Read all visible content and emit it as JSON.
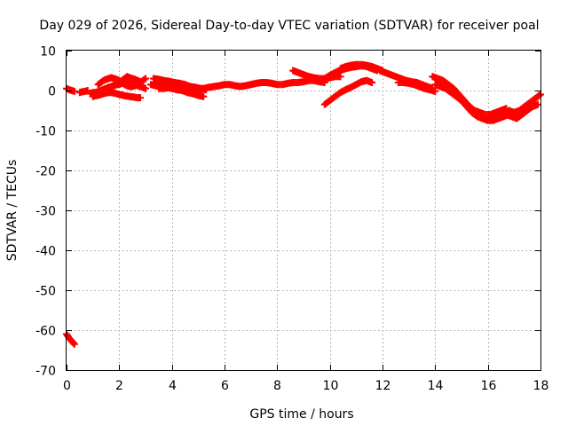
{
  "chart_data": {
    "type": "scatter",
    "title": "Day 029 of 2026, Sidereal Day-to-day VTEC variation (SDTVAR) for receiver poal",
    "xlabel": "GPS time / hours",
    "ylabel": "SDTVAR / TECUs",
    "xlim": [
      0,
      18
    ],
    "ylim": [
      -70,
      10
    ],
    "xticks": [
      0,
      2,
      4,
      6,
      8,
      10,
      12,
      14,
      16,
      18
    ],
    "yticks": [
      10,
      0,
      -10,
      -20,
      -30,
      -40,
      -50,
      -60,
      -70
    ],
    "grid": true,
    "legend": "none",
    "marker": "plus",
    "color": "#ff0000",
    "series": [
      {
        "name": "s1",
        "x": [
          0.0,
          0.1,
          0.2,
          0.3
        ],
        "y": [
          0.5,
          0.2,
          0.0,
          -0.2
        ]
      },
      {
        "name": "s2",
        "x": [
          0.5,
          0.6,
          0.7,
          0.8
        ],
        "y": [
          -0.5,
          -0.3,
          -0.2,
          0.0
        ]
      },
      {
        "name": "s3",
        "x": [
          0.9,
          1.0,
          1.1,
          1.2,
          1.3,
          1.4,
          1.5,
          1.6,
          1.7,
          1.8,
          1.9,
          2.0,
          2.1,
          2.2,
          2.3,
          2.4,
          2.5,
          2.6,
          2.7,
          2.8
        ],
        "y": [
          -0.8,
          -0.5,
          -0.5,
          -0.3,
          0.0,
          0.3,
          0.5,
          0.8,
          1.0,
          1.3,
          1.5,
          2.0,
          2.5,
          3.0,
          3.5,
          3.2,
          3.0,
          2.8,
          2.5,
          2.2
        ]
      },
      {
        "name": "s4",
        "x": [
          1.0,
          1.1,
          1.2,
          1.3,
          1.4,
          1.5,
          1.6,
          1.7,
          1.8,
          1.9,
          2.0,
          2.1,
          2.2,
          2.3,
          2.4,
          2.5,
          2.6,
          2.7,
          2.8
        ],
        "y": [
          -1.5,
          -1.3,
          -1.2,
          -1.0,
          -0.8,
          -0.6,
          -0.5,
          -0.5,
          -0.6,
          -0.8,
          -1.0,
          -1.1,
          -1.3,
          -1.4,
          -1.5,
          -1.6,
          -1.7,
          -1.8,
          -1.8
        ]
      },
      {
        "name": "s5",
        "x": [
          1.2,
          1.3,
          1.4,
          1.5,
          1.6,
          1.7,
          1.8,
          1.9,
          2.0,
          2.1,
          2.2,
          2.3,
          2.4,
          2.5,
          2.6,
          2.7,
          2.8,
          2.9,
          3.0
        ],
        "y": [
          1.5,
          2.0,
          2.5,
          2.8,
          3.0,
          3.2,
          3.0,
          2.8,
          2.5,
          2.0,
          1.5,
          1.2,
          1.0,
          1.0,
          1.2,
          1.5,
          2.0,
          2.5,
          3.0
        ]
      },
      {
        "name": "s6",
        "x": [
          1.3,
          1.4,
          1.5,
          1.6,
          1.7,
          1.8,
          1.9,
          2.0,
          2.1,
          2.2,
          2.3,
          2.4,
          2.5,
          2.6,
          2.7,
          2.8,
          2.9,
          3.0
        ],
        "y": [
          0.0,
          0.2,
          0.5,
          0.8,
          1.0,
          1.2,
          1.5,
          1.5,
          1.8,
          2.0,
          2.0,
          2.0,
          1.8,
          1.5,
          1.2,
          1.0,
          0.8,
          0.5
        ]
      },
      {
        "name": "s7",
        "x": [
          3.3,
          3.5,
          3.7,
          3.9,
          4.1,
          4.3,
          4.5,
          4.7,
          4.9,
          5.1,
          5.3
        ],
        "y": [
          3.0,
          2.8,
          2.5,
          2.3,
          2.0,
          1.8,
          1.5,
          1.0,
          0.8,
          0.5,
          0.2
        ]
      },
      {
        "name": "s8",
        "x": [
          3.2,
          3.4,
          3.6,
          3.8,
          4.0,
          4.2,
          4.4,
          4.6,
          4.8,
          5.0,
          5.2
        ],
        "y": [
          1.5,
          1.2,
          1.0,
          0.8,
          0.5,
          0.2,
          0.0,
          -0.5,
          -0.8,
          -1.2,
          -1.5
        ]
      },
      {
        "name": "s9",
        "x": [
          3.5,
          3.7,
          3.9,
          4.1,
          4.3,
          4.5,
          4.7,
          4.9,
          5.1
        ],
        "y": [
          0.5,
          0.5,
          0.8,
          1.0,
          1.2,
          1.0,
          0.8,
          0.5,
          0.0
        ]
      },
      {
        "name": "s10",
        "x": [
          4.8,
          5.0,
          5.2,
          5.4,
          5.6,
          5.8,
          6.0,
          6.2,
          6.4,
          6.6,
          6.8,
          7.0,
          7.2,
          7.4,
          7.6,
          7.8,
          8.0,
          8.2,
          8.4,
          8.6,
          8.8,
          9.0,
          9.2,
          9.4,
          9.6,
          9.8
        ],
        "y": [
          0.5,
          0.5,
          0.5,
          0.8,
          1.0,
          1.2,
          1.5,
          1.5,
          1.2,
          1.0,
          1.2,
          1.5,
          1.8,
          2.0,
          2.0,
          1.8,
          1.5,
          1.5,
          1.8,
          2.0,
          2.0,
          2.2,
          2.5,
          2.5,
          2.2,
          2.0
        ]
      },
      {
        "name": "s11",
        "x": [
          8.6,
          8.8,
          9.0,
          9.2,
          9.4,
          9.6,
          9.8,
          10.0,
          10.2,
          10.4
        ],
        "y": [
          5.0,
          4.5,
          4.0,
          3.5,
          3.2,
          3.0,
          3.0,
          3.2,
          3.5,
          3.5
        ]
      },
      {
        "name": "s12",
        "x": [
          9.6,
          9.8,
          10.0,
          10.2,
          10.4,
          10.6,
          10.8,
          11.0,
          11.2,
          11.4,
          11.6,
          11.8
        ],
        "y": [
          2.5,
          3.0,
          3.8,
          4.5,
          5.0,
          5.5,
          5.8,
          6.0,
          6.2,
          6.0,
          5.5,
          5.0
        ]
      },
      {
        "name": "s13",
        "x": [
          9.8,
          10.0,
          10.2,
          10.4,
          10.6,
          10.8,
          11.0,
          11.2,
          11.4,
          11.6
        ],
        "y": [
          -3.5,
          -2.5,
          -1.5,
          -0.5,
          0.2,
          0.8,
          1.5,
          2.2,
          2.5,
          2.0
        ]
      },
      {
        "name": "s14",
        "x": [
          10.4,
          10.6,
          10.8,
          11.0,
          11.2,
          11.4,
          11.6,
          11.8,
          12.0
        ],
        "y": [
          5.5,
          6.0,
          6.3,
          6.5,
          6.5,
          6.3,
          6.0,
          5.5,
          5.0
        ]
      },
      {
        "name": "s15",
        "x": [
          11.9,
          12.1,
          12.3,
          12.5,
          12.7,
          12.9,
          13.1,
          13.3,
          13.5,
          13.7,
          13.9
        ],
        "y": [
          5.0,
          4.5,
          4.0,
          3.5,
          3.0,
          2.5,
          2.2,
          2.0,
          1.5,
          1.0,
          0.5
        ]
      },
      {
        "name": "s16",
        "x": [
          12.6,
          12.8,
          13.0,
          13.2,
          13.4,
          13.6,
          13.8,
          14.0
        ],
        "y": [
          2.0,
          2.0,
          1.8,
          1.5,
          1.0,
          0.5,
          0.2,
          -0.2
        ]
      },
      {
        "name": "s17",
        "x": [
          13.9,
          14.1,
          14.3,
          14.5,
          14.7,
          14.9,
          15.1,
          15.3,
          15.5,
          15.7,
          15.9,
          16.1,
          16.3,
          16.5,
          16.7
        ],
        "y": [
          3.5,
          3.0,
          2.5,
          1.5,
          0.5,
          -1.0,
          -2.5,
          -4.0,
          -5.0,
          -5.5,
          -6.0,
          -6.0,
          -5.5,
          -5.0,
          -4.5
        ]
      },
      {
        "name": "s18",
        "x": [
          14.0,
          14.2,
          14.4,
          14.6,
          14.8,
          15.0,
          15.2,
          15.4,
          15.6,
          15.8,
          16.0,
          16.2,
          16.4,
          16.6,
          16.8,
          17.0
        ],
        "y": [
          1.5,
          1.0,
          0.5,
          -0.5,
          -1.5,
          -2.5,
          -4.0,
          -5.5,
          -6.5,
          -7.0,
          -7.5,
          -7.5,
          -7.0,
          -6.5,
          -6.0,
          -5.5
        ]
      },
      {
        "name": "s19",
        "x": [
          15.5,
          15.7,
          15.9,
          16.1,
          16.3,
          16.5,
          16.7,
          16.9,
          17.1,
          17.3,
          17.5,
          17.7,
          17.9
        ],
        "y": [
          -6.0,
          -6.5,
          -7.0,
          -7.0,
          -6.5,
          -6.0,
          -6.0,
          -6.5,
          -7.0,
          -6.0,
          -5.0,
          -4.0,
          -3.5
        ]
      },
      {
        "name": "s20",
        "x": [
          16.8,
          17.0,
          17.2,
          17.4,
          17.6,
          17.8,
          18.0
        ],
        "y": [
          -5.0,
          -5.5,
          -5.0,
          -4.0,
          -3.0,
          -2.0,
          -1.0
        ]
      },
      {
        "name": "s21",
        "x": [
          0.0,
          0.1,
          0.2,
          0.3
        ],
        "y": [
          -61.0,
          -62.0,
          -62.8,
          -63.5
        ]
      }
    ]
  }
}
